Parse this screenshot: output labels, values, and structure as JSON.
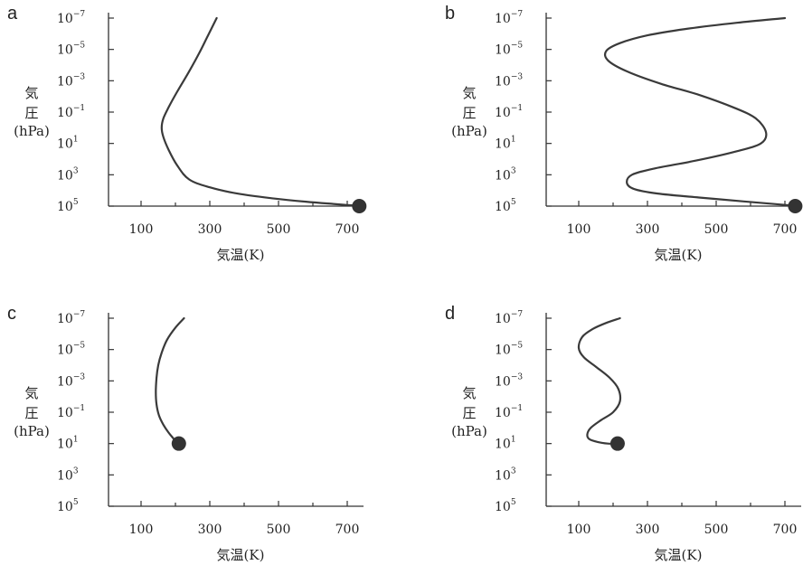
{
  "chart_data": [
    {
      "type": "line",
      "panel_label": "a",
      "xlabel": "気温(K)",
      "ylabel": [
        "気",
        "圧",
        "(hPa)"
      ],
      "x_ticks": [
        100,
        300,
        500,
        700
      ],
      "y_ticks": [
        {
          "base": "10",
          "exp": "−7"
        },
        {
          "base": "10",
          "exp": "−5"
        },
        {
          "base": "10",
          "exp": "−3"
        },
        {
          "base": "10",
          "exp": "−1"
        },
        {
          "base": "10",
          "exp": "1"
        },
        {
          "base": "10",
          "exp": "3"
        },
        {
          "base": "10",
          "exp": "5"
        }
      ],
      "xlim": [
        0,
        750
      ],
      "ylim_log10": [
        5,
        -7
      ],
      "y_scale": "log",
      "y_inverted": true,
      "series": [
        {
          "x": [
            320,
            295,
            270,
            240,
            205,
            180,
            165,
            160,
            165,
            180,
            205,
            240,
            300,
            380,
            480,
            580,
            660,
            700,
            730
          ],
          "log10_pressure": [
            -7,
            -5.9,
            -4.8,
            -3.6,
            -2.3,
            -1.3,
            -0.6,
            0,
            0.6,
            1.4,
            2.4,
            3.3,
            3.8,
            4.2,
            4.5,
            4.72,
            4.86,
            4.93,
            4.97
          ]
        }
      ],
      "surface_point": {
        "x": 735,
        "log10_pressure": 5
      }
    },
    {
      "type": "line",
      "panel_label": "b",
      "xlabel": "気温(K)",
      "ylabel": [
        "気",
        "圧",
        "(hPa)"
      ],
      "x_ticks": [
        100,
        300,
        500,
        700
      ],
      "y_ticks": [
        {
          "base": "10",
          "exp": "−7"
        },
        {
          "base": "10",
          "exp": "−5"
        },
        {
          "base": "10",
          "exp": "−3"
        },
        {
          "base": "10",
          "exp": "−1"
        },
        {
          "base": "10",
          "exp": "1"
        },
        {
          "base": "10",
          "exp": "3"
        },
        {
          "base": "10",
          "exp": "5"
        }
      ],
      "xlim": [
        0,
        750
      ],
      "ylim_log10": [
        5,
        -7
      ],
      "y_scale": "log",
      "y_inverted": true,
      "series": [
        {
          "x": [
            700,
            560,
            410,
            300,
            220,
            180,
            185,
            240,
            340,
            450,
            550,
            615,
            645,
            630,
            560,
            440,
            320,
            255,
            240,
            260,
            330,
            450,
            580,
            670,
            720
          ],
          "log10_pressure": [
            -7,
            -6.7,
            -6.3,
            -5.9,
            -5.4,
            -4.9,
            -4.3,
            -3.6,
            -2.8,
            -2.1,
            -1.3,
            -0.6,
            0.3,
            1.0,
            1.5,
            2.1,
            2.6,
            3.0,
            3.5,
            3.9,
            4.2,
            4.45,
            4.7,
            4.87,
            4.96
          ]
        }
      ],
      "surface_point": {
        "x": 730,
        "log10_pressure": 5
      }
    },
    {
      "type": "line",
      "panel_label": "c",
      "xlabel": "気温(K)",
      "ylabel": [
        "気",
        "圧",
        "(hPa)"
      ],
      "x_ticks": [
        100,
        300,
        500,
        700
      ],
      "y_ticks": [
        {
          "base": "10",
          "exp": "−7"
        },
        {
          "base": "10",
          "exp": "−5"
        },
        {
          "base": "10",
          "exp": "−3"
        },
        {
          "base": "10",
          "exp": "−1"
        },
        {
          "base": "10",
          "exp": "1"
        },
        {
          "base": "10",
          "exp": "3"
        },
        {
          "base": "10",
          "exp": "5"
        }
      ],
      "xlim": [
        0,
        750
      ],
      "ylim_log10": [
        5,
        -7
      ],
      "y_scale": "log",
      "y_inverted": true,
      "series": [
        {
          "x": [
            225,
            200,
            175,
            160,
            150,
            145,
            143,
            145,
            152,
            165,
            180,
            195,
            205
          ],
          "log10_pressure": [
            -7,
            -6.4,
            -5.6,
            -4.8,
            -4.0,
            -3.2,
            -2.3,
            -1.5,
            -0.8,
            -0.2,
            0.3,
            0.7,
            1.0
          ]
        }
      ],
      "surface_point": {
        "x": 210,
        "log10_pressure": 1
      }
    },
    {
      "type": "line",
      "panel_label": "d",
      "xlabel": "気温(K)",
      "ylabel": [
        "気",
        "圧",
        "(hPa)"
      ],
      "x_ticks": [
        100,
        300,
        500,
        700
      ],
      "y_ticks": [
        {
          "base": "10",
          "exp": "−7"
        },
        {
          "base": "10",
          "exp": "−5"
        },
        {
          "base": "10",
          "exp": "−3"
        },
        {
          "base": "10",
          "exp": "−1"
        },
        {
          "base": "10",
          "exp": "1"
        },
        {
          "base": "10",
          "exp": "3"
        },
        {
          "base": "10",
          "exp": "5"
        }
      ],
      "xlim": [
        0,
        750
      ],
      "ylim_log10": [
        5,
        -7
      ],
      "y_scale": "log",
      "y_inverted": true,
      "series": [
        {
          "x": [
            220,
            180,
            140,
            110,
            100,
            115,
            150,
            190,
            215,
            220,
            200,
            165,
            135,
            125,
            130,
            155,
            185,
            205
          ],
          "log10_pressure": [
            -7,
            -6.7,
            -6.3,
            -5.8,
            -5.1,
            -4.5,
            -3.9,
            -3.2,
            -2.5,
            -1.7,
            -1.0,
            -0.5,
            0,
            0.4,
            0.7,
            0.9,
            1.0,
            1.0
          ]
        }
      ],
      "surface_point": {
        "x": 213,
        "log10_pressure": 1
      }
    }
  ]
}
